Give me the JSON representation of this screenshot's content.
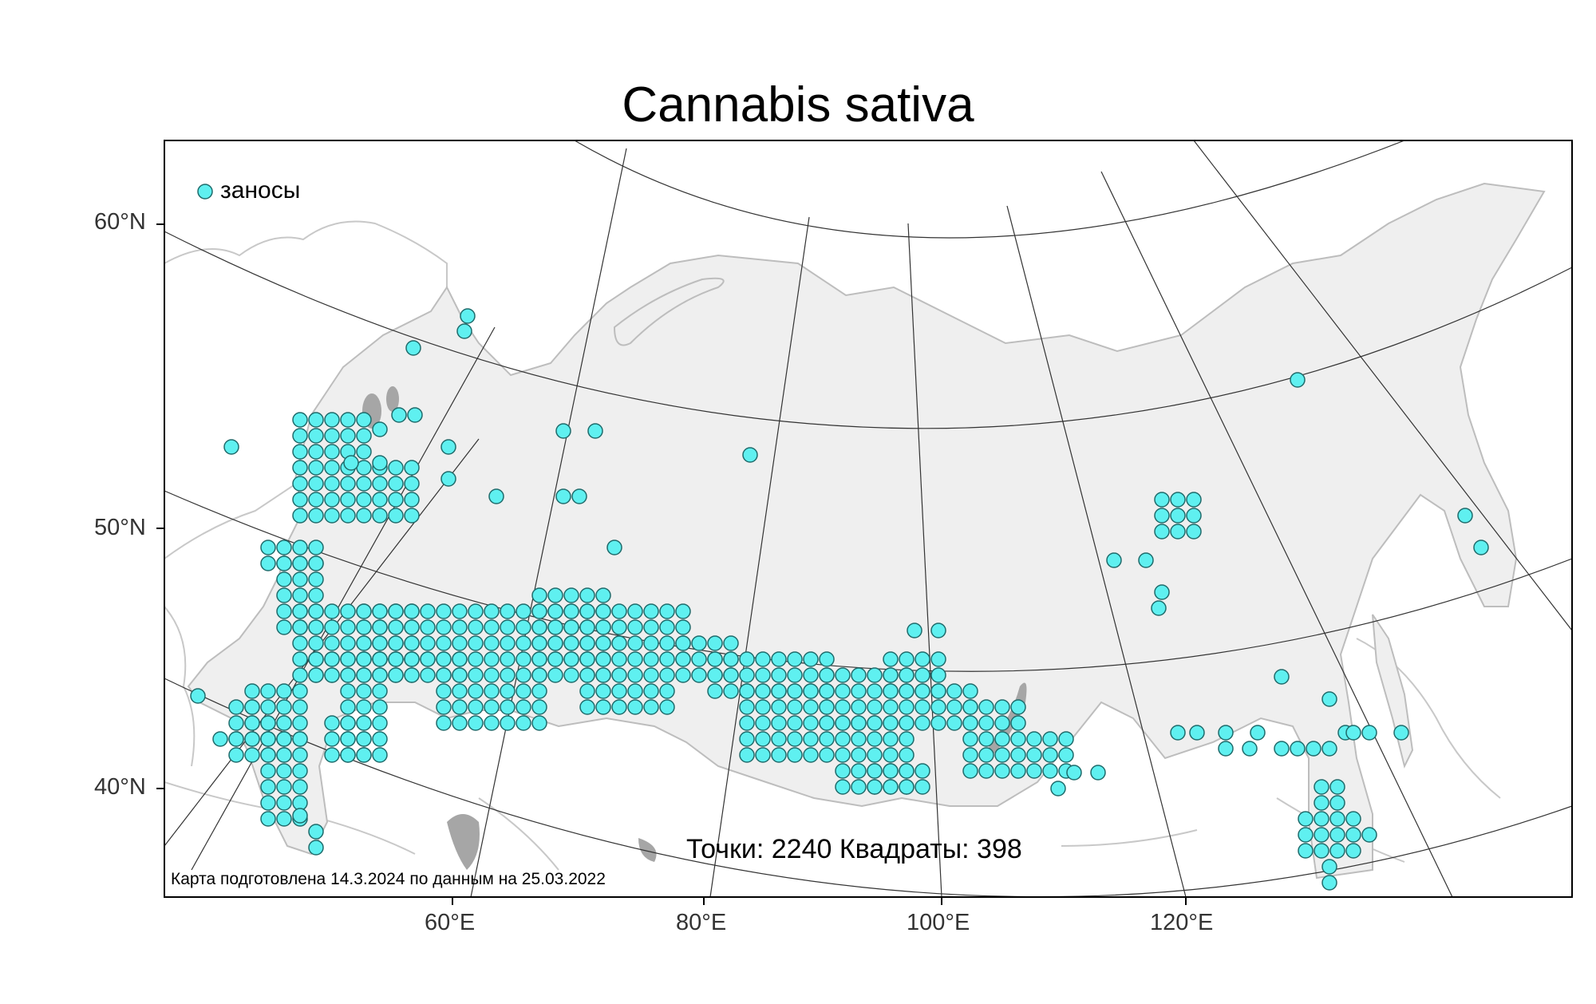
{
  "title": "Cannabis sativa",
  "legend": {
    "label": "заносы",
    "marker_color": "#5ff0f0"
  },
  "lat_labels": [
    "60°N",
    "50°N",
    "40°N"
  ],
  "lon_labels": [
    "60°E",
    "80°E",
    "100°E",
    "120°E"
  ],
  "stats": {
    "text": "Точки: 2240 Квадраты: 398"
  },
  "credit": "Карта подготовлена 14.3.2024 по данным на 25.03.2022",
  "colors": {
    "land": "#efefef",
    "coast": "#bdbdbd",
    "graticule": "#333333",
    "frame": "#000000",
    "point_fill": "#5ff0f0",
    "point_stroke": "#1f6b6b",
    "lake": "#a6a6a6"
  }
}
